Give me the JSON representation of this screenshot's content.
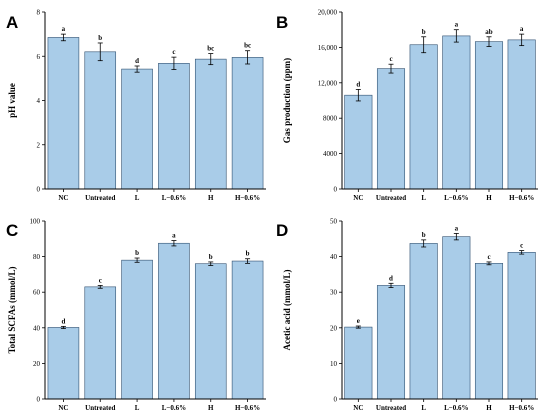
{
  "figure": {
    "bar_color": "#a9cce8",
    "bar_edge": "#2f4f6f",
    "error_color": "#000000"
  },
  "chart_data": [
    {
      "type": "bar",
      "panel": "A",
      "ylabel": "pH value",
      "ylim": [
        0,
        8
      ],
      "yticks": [
        0,
        2,
        4,
        6,
        8
      ],
      "ytick_labels": [
        "0",
        "2",
        "4",
        "6",
        "8"
      ],
      "categories": [
        "NC",
        "Untreated",
        "L",
        "L−0.6%",
        "H",
        "H−0.6%"
      ],
      "values": [
        6.85,
        6.2,
        5.42,
        5.68,
        5.87,
        5.95
      ],
      "errors": [
        0.15,
        0.4,
        0.14,
        0.28,
        0.25,
        0.3
      ],
      "significance": [
        "a",
        "b",
        "d",
        "c",
        "bc",
        "bc"
      ]
    },
    {
      "type": "bar",
      "panel": "B",
      "ylabel": "Gas production (ppm)",
      "ylim": [
        0,
        20000
      ],
      "yticks": [
        0,
        4000,
        8000,
        12000,
        16000,
        20000
      ],
      "ytick_labels": [
        "0",
        "4000",
        "8000",
        "12,000",
        "16,000",
        "20,000"
      ],
      "categories": [
        "NC",
        "Untreated",
        "L",
        "L−0.6%",
        "H",
        "H−0.6%"
      ],
      "values": [
        10600,
        13600,
        16300,
        17300,
        16650,
        16850
      ],
      "errors": [
        650,
        500,
        900,
        700,
        550,
        650
      ],
      "significance": [
        "d",
        "c",
        "b",
        "a",
        "ab",
        "a"
      ]
    },
    {
      "type": "bar",
      "panel": "C",
      "ylabel": "Total SCFAs (mmol/L)",
      "ylim": [
        0,
        100
      ],
      "yticks": [
        0,
        20,
        40,
        60,
        80,
        100
      ],
      "ytick_labels": [
        "0",
        "20",
        "40",
        "60",
        "80",
        "100"
      ],
      "categories": [
        "NC",
        "Untreated",
        "L",
        "L−0.6%",
        "H",
        "H−0.6%"
      ],
      "values": [
        40.2,
        63,
        78,
        87.5,
        76,
        77.5
      ],
      "errors": [
        0.6,
        0.8,
        1.2,
        1.5,
        1.0,
        1.3
      ],
      "significance": [
        "d",
        "c",
        "b",
        "a",
        "b",
        "b"
      ]
    },
    {
      "type": "bar",
      "panel": "D",
      "ylabel": "Acetic acid (mmol/L)",
      "ylim": [
        0,
        50
      ],
      "yticks": [
        0,
        10,
        20,
        30,
        40,
        50
      ],
      "ytick_labels": [
        "0",
        "10",
        "20",
        "30",
        "40",
        "50"
      ],
      "categories": [
        "NC",
        "Untreated",
        "L",
        "L−0.6%",
        "H",
        "H−0.6%"
      ],
      "values": [
        20.2,
        31.9,
        43.7,
        45.6,
        38.1,
        41.2
      ],
      "errors": [
        0.3,
        0.6,
        1.0,
        0.9,
        0.4,
        0.5
      ],
      "significance": [
        "e",
        "d",
        "b",
        "a",
        "c",
        "c"
      ]
    }
  ]
}
